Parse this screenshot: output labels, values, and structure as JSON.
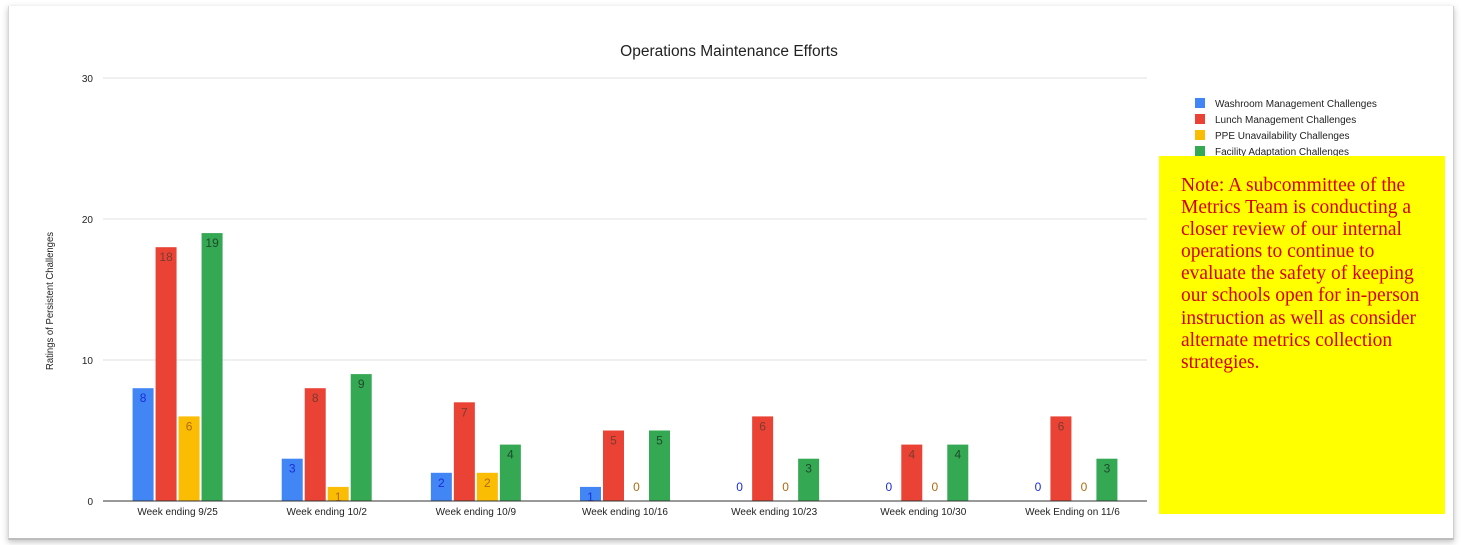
{
  "chart_data": {
    "type": "bar",
    "title": "Operations Maintenance Efforts",
    "ylabel": "Ratings of Persistent Challenges",
    "xlabel": "",
    "ylim": [
      0,
      30
    ],
    "yticks": [
      0,
      10,
      20,
      30
    ],
    "grid": true,
    "legend_position": "top-right",
    "categories": [
      "Week ending 9/25",
      "Week ending 10/2",
      "Week ending 10/9",
      "Week ending 10/16",
      "Week ending 10/23",
      "Week ending 10/30",
      "Week Ending on 11/6"
    ],
    "series": [
      {
        "name": "Washroom Management Challenges",
        "color": "#4285f4",
        "label_color": "#1a2fd8",
        "values": [
          8,
          3,
          2,
          1,
          0,
          0,
          0
        ]
      },
      {
        "name": "Lunch Management Challenges",
        "color": "#ea4335",
        "label_color": "#7a3b2e",
        "values": [
          18,
          8,
          7,
          5,
          6,
          4,
          6
        ]
      },
      {
        "name": "PPE Unavailability Challenges",
        "color": "#fbbc04",
        "label_color": "#b06a10",
        "values": [
          6,
          1,
          2,
          0,
          0,
          0,
          0
        ]
      },
      {
        "name": "Facility Adaptation Challenges",
        "color": "#34a853",
        "label_color": "#204a2c",
        "values": [
          19,
          9,
          4,
          5,
          3,
          4,
          3
        ]
      }
    ]
  },
  "note": {
    "text": "Note: A subcommittee of the Metrics Team is conducting a closer review of our internal operations to continue to evaluate the safety of keeping our schools open for in-person instruction as well as consider alternate metrics collection strategies.",
    "background": "#ffff00",
    "text_color": "#d40000"
  }
}
